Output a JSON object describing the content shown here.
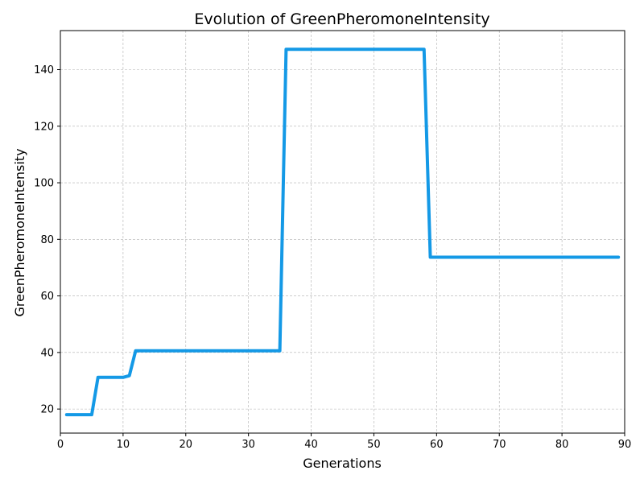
{
  "chart_data": {
    "type": "line",
    "title": "Evolution of GreenPheromoneIntensity",
    "xlabel": "Generations",
    "ylabel": "GreenPheromoneIntensity",
    "xlim": [
      0,
      90
    ],
    "ylim": [
      11.5,
      153.8
    ],
    "xticks": [
      0,
      10,
      20,
      30,
      40,
      50,
      60,
      70,
      80,
      90
    ],
    "yticks": [
      20,
      40,
      60,
      80,
      100,
      120,
      140
    ],
    "grid": true,
    "line_color": "#1499e6",
    "series": [
      {
        "x": [
          1,
          5,
          6,
          10,
          11,
          12,
          35,
          36,
          58,
          59,
          89
        ],
        "y": [
          18,
          18,
          31.2,
          31.2,
          31.8,
          40.6,
          40.6,
          147.2,
          147.2,
          73.7,
          73.7
        ]
      }
    ]
  }
}
